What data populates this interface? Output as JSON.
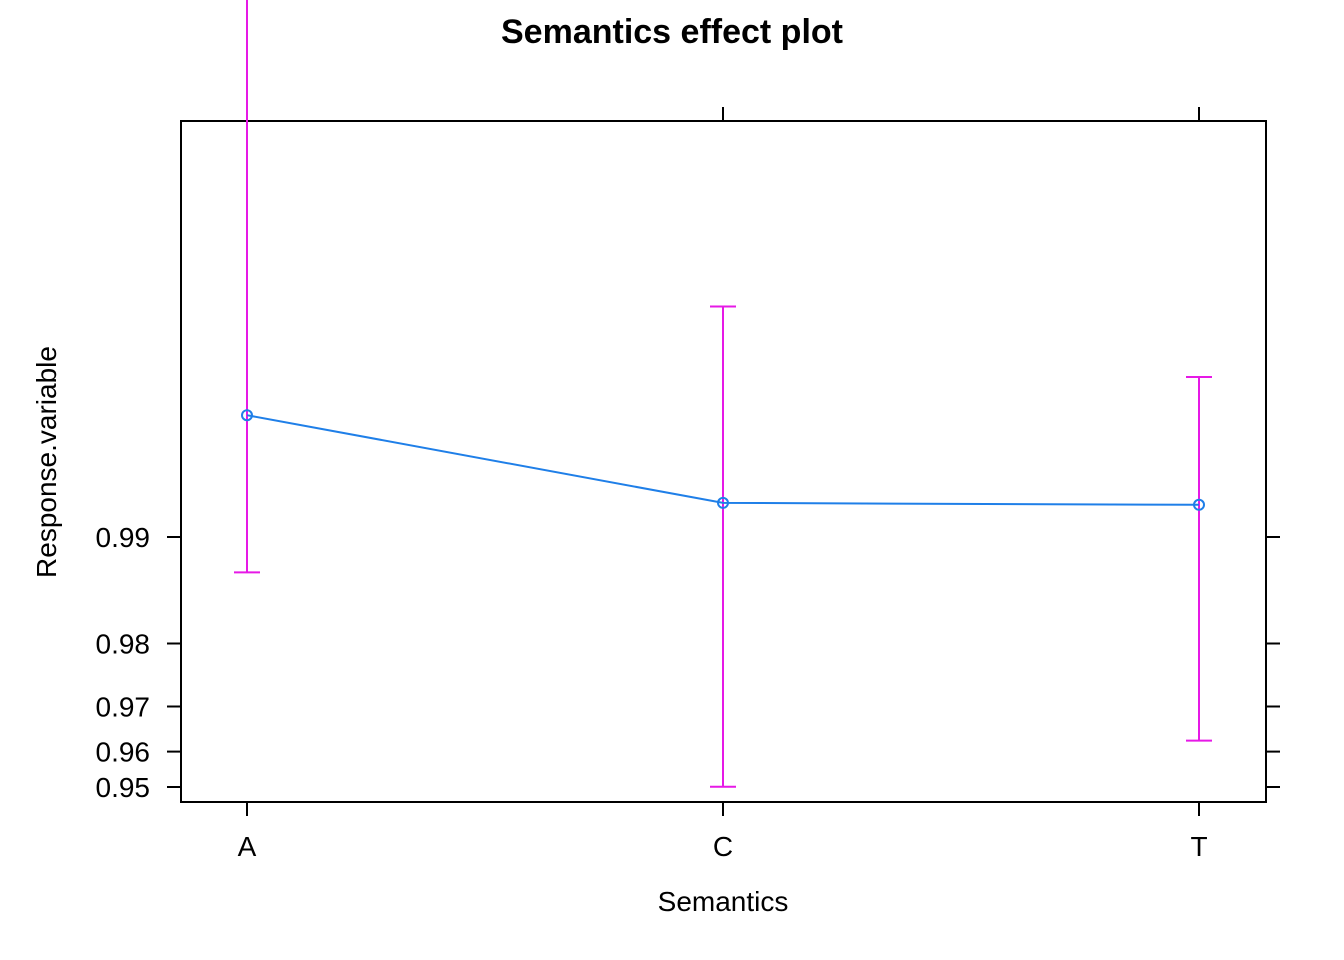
{
  "chart_data": {
    "type": "line",
    "title": "Semantics effect plot",
    "xlabel": "Semantics",
    "ylabel": "Response.variable",
    "categories": [
      "A",
      "C",
      "T"
    ],
    "series": [
      {
        "values": [
          0.9955,
          0.992,
          0.9919
        ],
        "lower": [
          0.9874,
          0.9501,
          0.9627
        ],
        "upper": [
          0.99992,
          0.9978,
          0.9965
        ]
      }
    ],
    "yticks": [
      0.95,
      0.96,
      0.97,
      0.98,
      0.99
    ],
    "ytick_labels": [
      "0.95",
      "0.96",
      "0.97",
      "0.98",
      "0.99"
    ],
    "y_scale": "logit",
    "grid": false,
    "colors": {
      "line": "#1f7fe8",
      "error_bars": "#e619e6",
      "axis": "#000000"
    }
  }
}
